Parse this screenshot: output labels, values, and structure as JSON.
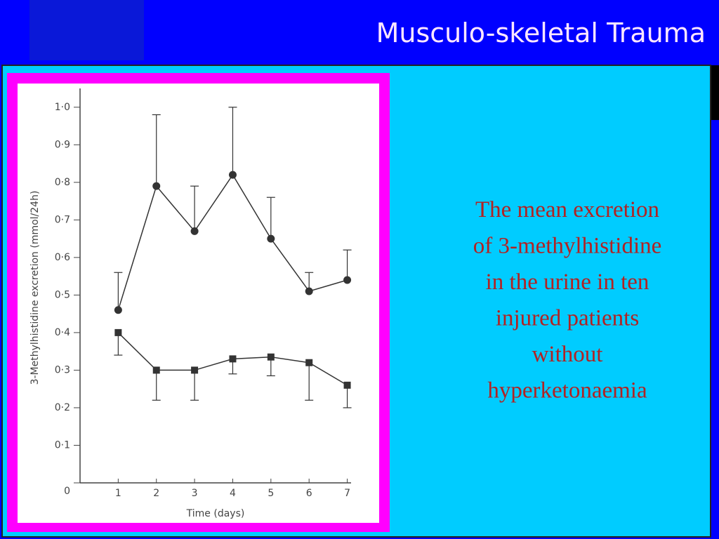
{
  "title": "Musculo-skeletal Trauma",
  "caption": [
    "The mean excretion",
    "of 3-methylhistidine",
    "in the urine in ten",
    "injured patients",
    "without",
    "hyperketonaemia"
  ],
  "chart_data": {
    "type": "line",
    "x_label": "Time (days)",
    "y_label": "3-Methylhistidine  excretion (mmol/24h)",
    "x": [
      1,
      2,
      3,
      4,
      5,
      6,
      7
    ],
    "series": [
      {
        "color": "#333333",
        "marker": "circle",
        "values": [
          0.46,
          0.79,
          0.67,
          0.82,
          0.65,
          0.51,
          0.54
        ],
        "errors": [
          0.1,
          0.19,
          0.12,
          0.18,
          0.11,
          0.05,
          0.08
        ],
        "error_direction": "up"
      },
      {
        "color": "#333333",
        "marker": "square",
        "values": [
          0.4,
          0.3,
          0.3,
          0.33,
          0.335,
          0.32,
          0.26
        ],
        "errors": [
          0.06,
          0.08,
          0.08,
          0.04,
          0.05,
          0.1,
          0.06
        ],
        "error_direction": "down"
      }
    ],
    "xlim": [
      0,
      7.1
    ],
    "xticks": [
      1,
      2,
      3,
      4,
      5,
      6,
      7
    ],
    "ylim": [
      0,
      1.05
    ],
    "yticks": [
      0,
      {
        "value": 0.1,
        "label": "0·1"
      },
      {
        "value": 0.2,
        "label": "0·2"
      },
      {
        "value": 0.3,
        "label": "0·3"
      },
      {
        "value": 0.4,
        "label": "0·4"
      },
      {
        "value": 0.5,
        "label": "0·5"
      },
      {
        "value": 0.6,
        "label": "0·6"
      },
      {
        "value": 0.7,
        "label": "0·7"
      },
      {
        "value": 0.8,
        "label": "0·8"
      },
      {
        "value": 0.9,
        "label": "0·9"
      },
      {
        "value": 1.0,
        "label": "1·0"
      }
    ]
  }
}
